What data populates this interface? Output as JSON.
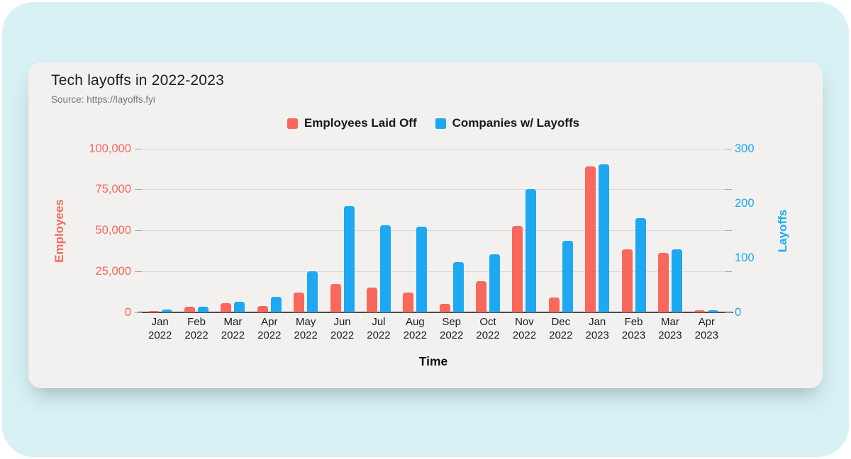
{
  "header": {
    "title": "Tech layoffs in 2022-2023",
    "source": "Source: https://layoffs.fyi"
  },
  "legend": {
    "items": [
      {
        "label": "Employees Laid Off",
        "color": "#f8685c"
      },
      {
        "label": "Companies w/ Layoffs",
        "color": "#1ea8f2"
      }
    ]
  },
  "chart_data": {
    "type": "bar",
    "title": "Tech layoffs in 2022-2023",
    "source": "Source: https://layoffs.fyi",
    "xlabel": "Time",
    "grid": true,
    "legend_position": "top",
    "categories": [
      "Jan 2022",
      "Feb 2022",
      "Mar 2022",
      "Apr 2022",
      "May 2022",
      "Jun 2022",
      "Jul 2022",
      "Aug 2022",
      "Sep 2022",
      "Oct 2022",
      "Nov 2022",
      "Dec 2022",
      "Jan 2023",
      "Feb 2023",
      "Mar 2023",
      "Apr 2023"
    ],
    "axes": {
      "left": {
        "label": "Employees",
        "min": 0,
        "max": 100000,
        "ticks": [
          0,
          25000,
          50000,
          75000,
          100000
        ],
        "tick_labels": [
          "0",
          "25,000",
          "50,000",
          "75,000",
          "100,000"
        ],
        "color": "#f8685c"
      },
      "right": {
        "label": "Layoffs",
        "min": 0,
        "max": 300,
        "ticks": [
          0,
          100,
          200,
          300
        ],
        "tick_labels": [
          "0",
          "100",
          "200",
          "300"
        ],
        "color": "#1ea8f2"
      }
    },
    "series": [
      {
        "name": "Employees Laid Off",
        "axis": "left",
        "color": "#f8685c",
        "values": [
          500,
          3500,
          5600,
          4000,
          12200,
          17400,
          15300,
          12200,
          5400,
          19200,
          53000,
          9300,
          89000,
          38700,
          36200,
          1100
        ]
      },
      {
        "name": "Companies w/ Layoffs",
        "axis": "right",
        "color": "#1ea8f2",
        "values": [
          5,
          11,
          19,
          29,
          75,
          195,
          160,
          157,
          92,
          106,
          226,
          131,
          272,
          173,
          115,
          4
        ]
      }
    ]
  },
  "colors": {
    "page_bg": "#ffffff",
    "panel_bg": "#d7f1f5",
    "card_bg": "#f2f1f0",
    "gridline": "#d9d9d9",
    "baseline": "#4a4a4a",
    "title_text": "#1f1f1f",
    "source_text": "#757575"
  }
}
